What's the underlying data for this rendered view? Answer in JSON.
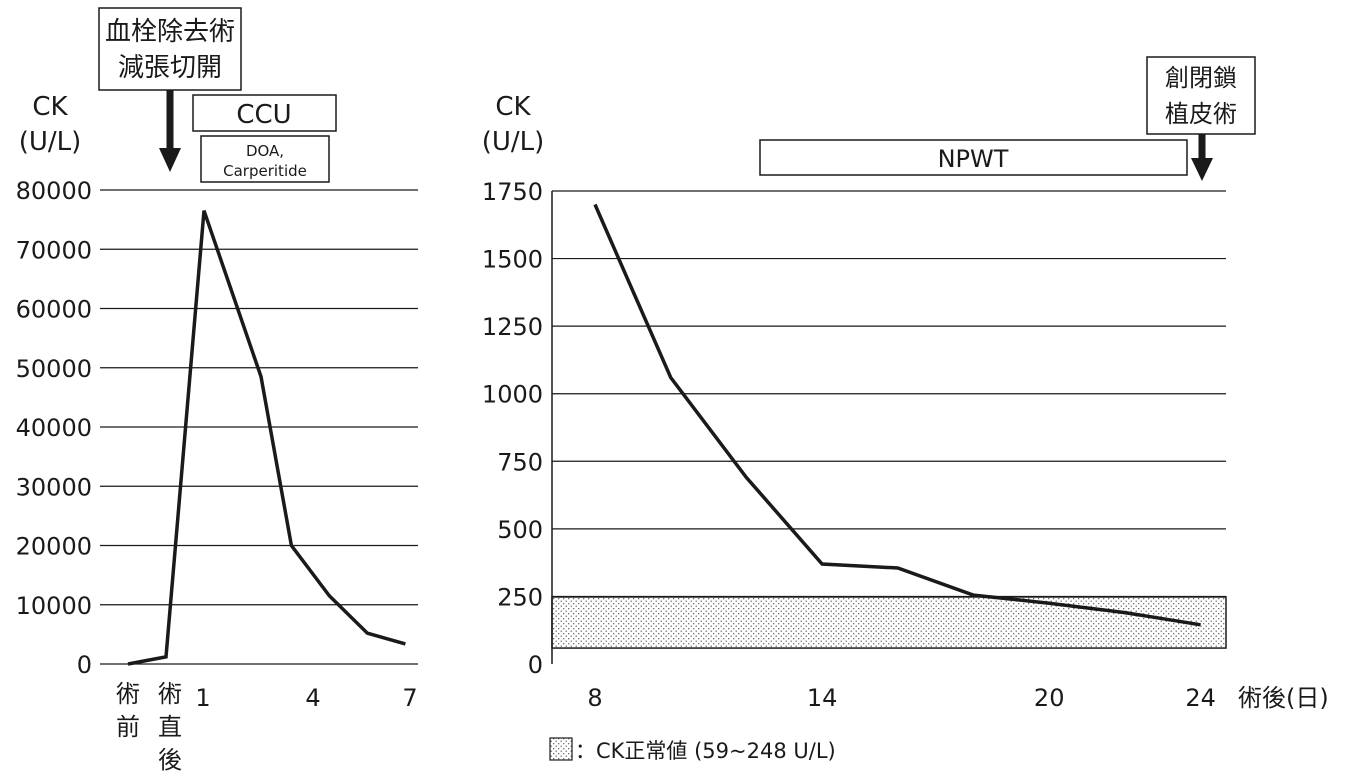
{
  "chart_data": [
    {
      "type": "line",
      "ylabel": [
        "CK",
        "(U/L)"
      ],
      "ylim": [
        0,
        80000
      ],
      "yticks": [
        0,
        10000,
        20000,
        30000,
        40000,
        50000,
        60000,
        70000,
        80000
      ],
      "grid": true,
      "xtick_labels": [
        {
          "label": "術前",
          "vertical": true
        },
        {
          "label": "術直後",
          "vertical": true
        },
        {
          "label": "1",
          "vertical": false
        },
        {
          "label": "4",
          "vertical": false
        },
        {
          "label": "7",
          "vertical": false
        }
      ],
      "series": [
        {
          "x": [
            "術前",
            "術直後",
            1,
            2,
            3,
            4,
            5,
            6,
            7
          ],
          "y": [
            0,
            1200,
            76500,
            48500,
            20000,
            11500,
            5200,
            3400,
            null
          ]
        }
      ],
      "series_points": [
        [
          0,
          0
        ],
        [
          1,
          1200
        ],
        [
          2,
          76500
        ],
        [
          3.5,
          48500
        ],
        [
          4.3,
          20000
        ],
        [
          5.3,
          11500
        ],
        [
          6.3,
          5200
        ],
        [
          7.3,
          3400
        ]
      ],
      "annotations": [
        {
          "kind": "event-arrow",
          "text": [
            "血栓除去術",
            "減張切開"
          ],
          "at": "術直後"
        },
        {
          "kind": "period-box",
          "text": [
            "CCU"
          ]
        },
        {
          "kind": "period-box",
          "text": [
            "DOA,",
            "Carperitide"
          ]
        }
      ]
    },
    {
      "type": "line",
      "ylabel": [
        "CK",
        "(U/L)"
      ],
      "xlabel": "術後(日)",
      "ylim": [
        0,
        1750
      ],
      "yticks": [
        0,
        250,
        500,
        750,
        1000,
        1250,
        1500,
        1750
      ],
      "xticks": [
        8,
        14,
        20,
        24
      ],
      "grid": true,
      "series": [
        {
          "x": [
            8,
            10,
            12,
            14,
            16,
            18,
            20,
            22,
            24
          ],
          "y": [
            1700,
            1060,
            690,
            370,
            355,
            255,
            225,
            190,
            145
          ]
        }
      ],
      "normal_range": {
        "low": 59,
        "high": 248
      },
      "annotations": [
        {
          "kind": "period-box",
          "text": [
            "NPWT"
          ],
          "from": 13,
          "to": 23.5
        },
        {
          "kind": "event-arrow",
          "text": [
            "創閉鎖",
            "植皮術"
          ],
          "at": 24
        }
      ],
      "legend": {
        "text": "：CK正常値 (59~248 U/L)",
        "placement": "bottom"
      }
    }
  ]
}
